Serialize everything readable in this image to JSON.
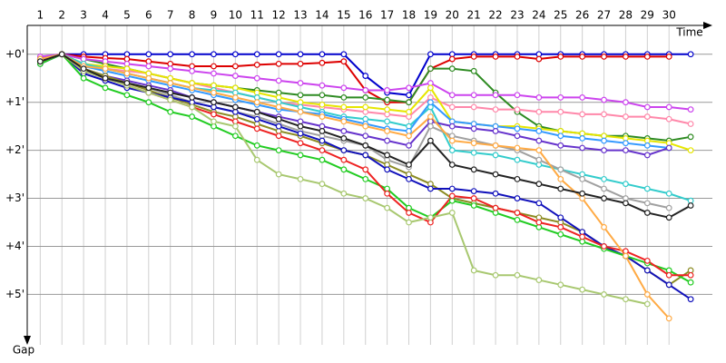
{
  "chart_data": {
    "type": "line",
    "x_label": "Time",
    "y_label": "Gap",
    "x": [
      1,
      2,
      3,
      4,
      5,
      6,
      7,
      8,
      9,
      10,
      11,
      12,
      13,
      14,
      15,
      16,
      17,
      18,
      19,
      20,
      21,
      22,
      23,
      24,
      25,
      26,
      27,
      28,
      29,
      30,
      31
    ],
    "xlim": [
      0.4,
      32
    ],
    "xticks": [
      1,
      2,
      3,
      4,
      5,
      6,
      7,
      8,
      9,
      10,
      11,
      12,
      13,
      14,
      15,
      16,
      17,
      18,
      19,
      20,
      21,
      22,
      23,
      24,
      25,
      26,
      27,
      28,
      29,
      30
    ],
    "ylim": [
      -0.6,
      6.05
    ],
    "y_inverted": true,
    "yticks": [
      {
        "value": 0,
        "label": "+0'"
      },
      {
        "value": 1,
        "label": "+1'"
      },
      {
        "value": 2,
        "label": "+2'"
      },
      {
        "value": 3,
        "label": "+3'"
      },
      {
        "value": 4,
        "label": "+4'"
      },
      {
        "value": 5,
        "label": "+5'"
      }
    ],
    "grid": true,
    "series": [
      {
        "color": "#0000cc",
        "values": [
          0.1,
          0,
          0,
          0,
          0,
          0,
          0,
          0,
          0,
          0,
          0,
          0,
          0,
          0,
          0,
          0.45,
          0.8,
          0.85,
          0,
          0,
          0,
          0,
          0,
          0,
          0,
          0,
          0,
          0,
          0,
          0,
          0
        ]
      },
      {
        "color": "#dd0000",
        "values": [
          0.15,
          0,
          0.05,
          0.08,
          0.1,
          0.15,
          0.2,
          0.25,
          0.25,
          0.25,
          0.22,
          0.2,
          0.2,
          0.18,
          0.15,
          0.75,
          1.0,
          1.0,
          0.3,
          0.1,
          0.05,
          0.05,
          0.05,
          0.1,
          0.05,
          0.05,
          0.05,
          0.05,
          0.05,
          0.05,
          null
        ]
      },
      {
        "color": "#2e8b22",
        "values": [
          0.1,
          0,
          0.1,
          0.2,
          0.3,
          0.4,
          0.5,
          0.6,
          0.65,
          0.7,
          0.75,
          0.8,
          0.85,
          0.85,
          0.9,
          0.9,
          0.95,
          1.0,
          0.3,
          0.3,
          0.35,
          0.8,
          1.2,
          1.5,
          1.6,
          1.65,
          1.7,
          1.7,
          1.75,
          1.8,
          1.72
        ]
      },
      {
        "color": "#cc44ee",
        "values": [
          0.05,
          0,
          0.1,
          0.15,
          0.2,
          0.25,
          0.3,
          0.35,
          0.4,
          0.45,
          0.5,
          0.55,
          0.6,
          0.65,
          0.7,
          0.75,
          0.75,
          0.7,
          0.6,
          0.85,
          0.85,
          0.85,
          0.85,
          0.9,
          0.9,
          0.9,
          0.95,
          1.0,
          1.1,
          1.1,
          1.15
        ]
      },
      {
        "color": "#ff88aa",
        "values": [
          0.1,
          0,
          0.2,
          0.3,
          0.35,
          0.4,
          0.5,
          0.6,
          0.7,
          0.8,
          0.9,
          1.0,
          1.05,
          1.1,
          1.15,
          1.2,
          1.25,
          1.3,
          0.9,
          1.1,
          1.1,
          1.15,
          1.15,
          1.2,
          1.2,
          1.25,
          1.25,
          1.3,
          1.3,
          1.35,
          1.45
        ]
      },
      {
        "color": "#e6e600",
        "values": [
          0.1,
          0,
          0.2,
          0.25,
          0.3,
          0.4,
          0.5,
          0.6,
          0.65,
          0.7,
          0.8,
          0.9,
          1.0,
          1.05,
          1.1,
          1.1,
          1.15,
          1.2,
          0.7,
          1.4,
          1.45,
          1.5,
          1.5,
          1.55,
          1.6,
          1.65,
          1.7,
          1.75,
          1.8,
          1.85,
          2.0
        ]
      },
      {
        "color": "#33cccc",
        "values": [
          0.15,
          0,
          0.2,
          0.3,
          0.4,
          0.5,
          0.6,
          0.7,
          0.75,
          0.8,
          0.9,
          1.0,
          1.1,
          1.2,
          1.3,
          1.35,
          1.4,
          1.5,
          1.1,
          2.0,
          2.05,
          2.1,
          2.2,
          2.3,
          2.4,
          2.5,
          2.6,
          2.7,
          2.8,
          2.9,
          3.05
        ]
      },
      {
        "color": "#3399ff",
        "values": [
          0.1,
          0,
          0.25,
          0.35,
          0.45,
          0.55,
          0.65,
          0.75,
          0.85,
          0.95,
          1.05,
          1.15,
          1.2,
          1.25,
          1.35,
          1.45,
          1.55,
          1.6,
          1.0,
          1.4,
          1.45,
          1.5,
          1.55,
          1.6,
          1.7,
          1.75,
          1.8,
          1.85,
          1.9,
          1.95,
          null
        ]
      },
      {
        "color": "#6633cc",
        "values": [
          0.1,
          0,
          0.3,
          0.45,
          0.55,
          0.65,
          0.75,
          0.9,
          1.0,
          1.1,
          1.2,
          1.3,
          1.4,
          1.5,
          1.6,
          1.7,
          1.8,
          1.9,
          1.4,
          1.5,
          1.55,
          1.6,
          1.7,
          1.8,
          1.9,
          1.95,
          2.0,
          2.0,
          2.1,
          1.95,
          null
        ]
      },
      {
        "color": "#a0a0a0",
        "values": [
          0.1,
          0,
          0.35,
          0.5,
          0.6,
          0.7,
          0.85,
          1.0,
          1.1,
          1.2,
          1.3,
          1.45,
          1.6,
          1.7,
          1.8,
          1.9,
          2.2,
          2.35,
          1.5,
          1.7,
          1.8,
          1.9,
          2.0,
          2.2,
          2.4,
          2.6,
          2.8,
          3.0,
          3.1,
          3.2,
          null
        ]
      },
      {
        "color": "#8b8b22",
        "values": [
          0.1,
          0,
          0.3,
          0.45,
          0.6,
          0.75,
          0.9,
          1.05,
          1.2,
          1.3,
          1.45,
          1.6,
          1.7,
          1.85,
          2.0,
          2.1,
          2.3,
          2.5,
          2.7,
          3.0,
          3.1,
          3.2,
          3.3,
          3.4,
          3.5,
          3.7,
          4.0,
          4.2,
          4.5,
          4.8,
          4.5
        ]
      },
      {
        "color": "#1010bb",
        "values": [
          0.2,
          0,
          0.4,
          0.55,
          0.7,
          0.8,
          0.9,
          1.0,
          1.1,
          1.2,
          1.35,
          1.5,
          1.65,
          1.8,
          2.0,
          2.1,
          2.4,
          2.6,
          2.8,
          2.8,
          2.85,
          2.9,
          3.0,
          3.1,
          3.4,
          3.7,
          4.0,
          4.2,
          4.5,
          4.8,
          5.1
        ]
      },
      {
        "color": "#22cc22",
        "values": [
          0.2,
          0,
          0.5,
          0.7,
          0.85,
          1.0,
          1.2,
          1.3,
          1.5,
          1.7,
          1.9,
          2.0,
          2.1,
          2.2,
          2.4,
          2.6,
          2.8,
          3.2,
          3.4,
          3.05,
          3.15,
          3.3,
          3.45,
          3.6,
          3.75,
          3.9,
          4.05,
          4.2,
          4.35,
          4.5,
          4.75
        ]
      },
      {
        "color": "#ee2222",
        "values": [
          0.15,
          0,
          0.35,
          0.5,
          0.65,
          0.8,
          0.95,
          1.1,
          1.25,
          1.4,
          1.55,
          1.7,
          1.85,
          2.0,
          2.2,
          2.4,
          2.9,
          3.3,
          3.5,
          2.95,
          3.0,
          3.2,
          3.3,
          3.5,
          3.6,
          3.8,
          4.0,
          4.1,
          4.3,
          4.6,
          4.6
        ]
      },
      {
        "color": "#a8c870",
        "values": [
          0.15,
          0,
          0.35,
          0.5,
          0.65,
          0.8,
          0.95,
          1.1,
          1.4,
          1.5,
          2.2,
          2.5,
          2.6,
          2.7,
          2.9,
          3.0,
          3.2,
          3.5,
          3.4,
          3.3,
          4.5,
          4.6,
          4.6,
          4.7,
          4.8,
          4.9,
          5.0,
          5.1,
          5.2,
          null,
          null
        ]
      },
      {
        "color": "#ffaa44",
        "values": [
          0.1,
          0,
          0.25,
          0.3,
          0.4,
          0.5,
          0.6,
          0.7,
          0.8,
          0.9,
          1.0,
          1.1,
          1.2,
          1.3,
          1.4,
          1.5,
          1.6,
          1.7,
          1.3,
          1.8,
          1.85,
          1.9,
          1.95,
          2.0,
          2.6,
          3.0,
          3.6,
          4.2,
          5.0,
          5.5,
          null
        ]
      },
      {
        "color": "#222222",
        "values": [
          0.15,
          0,
          0.3,
          0.5,
          0.6,
          0.7,
          0.8,
          0.9,
          1.0,
          1.1,
          1.2,
          1.35,
          1.5,
          1.6,
          1.75,
          1.9,
          2.1,
          2.3,
          1.8,
          2.3,
          2.4,
          2.5,
          2.6,
          2.7,
          2.8,
          2.9,
          3.0,
          3.1,
          3.3,
          3.4,
          3.15
        ]
      }
    ]
  }
}
